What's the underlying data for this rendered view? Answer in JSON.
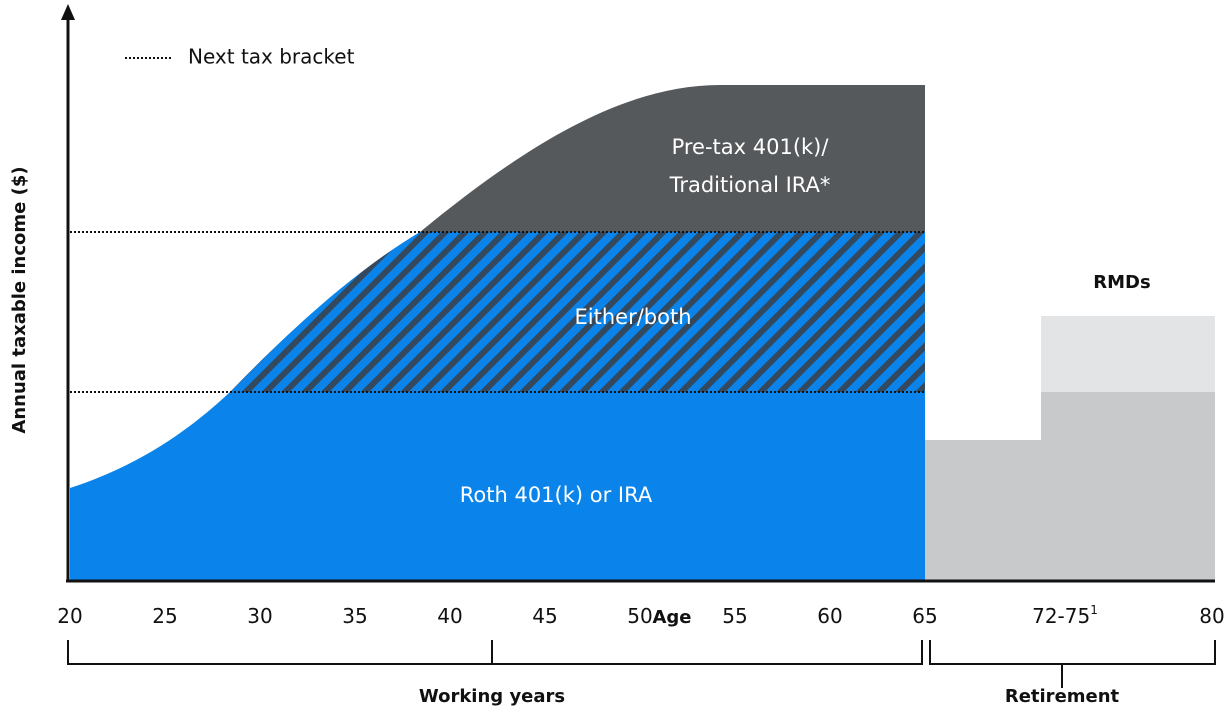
{
  "legend": "Next tax bracket",
  "y_axis_label": "Annual taxable income ($)",
  "x_axis_label": "Age",
  "x_ticks": [
    20,
    25,
    30,
    35,
    40,
    45,
    50,
    55,
    60,
    65,
    "72-75",
    80
  ],
  "x_tick_note": "1",
  "regions": {
    "pretax": [
      "Pre-tax 401(k)/",
      "Traditional IRA*"
    ],
    "either": "Either/both",
    "roth": "Roth 401(k) or IRA",
    "rmds": "RMDs"
  },
  "brackets": {
    "working": "Working years",
    "retirement": "Retirement"
  }
}
